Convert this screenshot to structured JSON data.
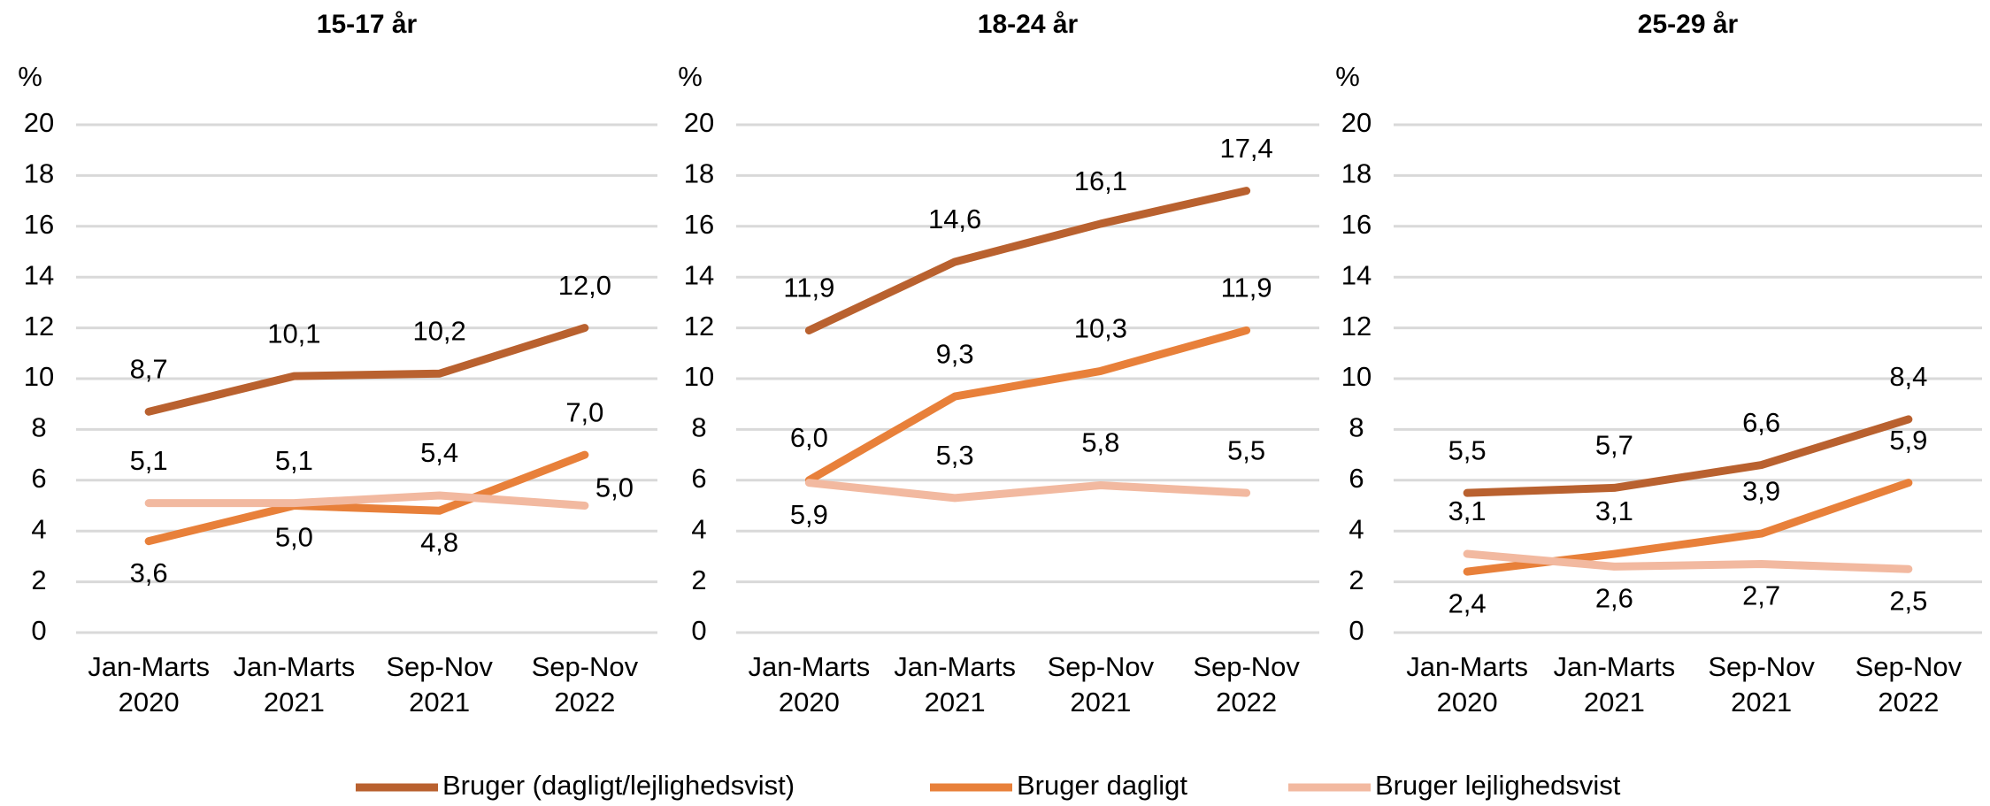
{
  "chart_data": [
    {
      "type": "line",
      "title": "15-17 år",
      "y_label": "%",
      "categories": [
        "Jan-Marts 2020",
        "Jan-Marts 2021",
        "Sep-Nov 2021",
        "Sep-Nov 2022"
      ],
      "ylim": [
        0,
        20
      ],
      "yticks": [
        0,
        2,
        4,
        6,
        8,
        10,
        12,
        14,
        16,
        18,
        20
      ],
      "grid": true,
      "series": [
        {
          "name": "Bruger (dagligt/lejlighedsvist)",
          "color": "#b9612f",
          "values": [
            8.7,
            10.1,
            10.2,
            12.0
          ],
          "value_labels": [
            "8,7",
            "10,1",
            "10,2",
            "12,0"
          ]
        },
        {
          "name": "Bruger dagligt",
          "color": "#e8803a",
          "values": [
            3.6,
            5.0,
            4.8,
            7.0
          ],
          "value_labels": [
            "3,6",
            "5,0",
            "4,8",
            "7,0"
          ]
        },
        {
          "name": "Bruger lejlighedsvist",
          "color": "#f2b9a0",
          "values": [
            5.1,
            5.1,
            5.4,
            5.0
          ],
          "value_labels": [
            "5,1",
            "5,1",
            "5,4",
            "5,0"
          ]
        }
      ]
    },
    {
      "type": "line",
      "title": "18-24 år",
      "y_label": "%",
      "categories": [
        "Jan-Marts 2020",
        "Jan-Marts 2021",
        "Sep-Nov 2021",
        "Sep-Nov 2022"
      ],
      "ylim": [
        0,
        20
      ],
      "yticks": [
        0,
        2,
        4,
        6,
        8,
        10,
        12,
        14,
        16,
        18,
        20
      ],
      "grid": true,
      "series": [
        {
          "name": "Bruger (dagligt/lejlighedsvist)",
          "color": "#b9612f",
          "values": [
            11.9,
            14.6,
            16.1,
            17.4
          ],
          "value_labels": [
            "11,9",
            "14,6",
            "16,1",
            "17,4"
          ]
        },
        {
          "name": "Bruger dagligt",
          "color": "#e8803a",
          "values": [
            6.0,
            9.3,
            10.3,
            11.9
          ],
          "value_labels": [
            "6,0",
            "9,3",
            "10,3",
            "11,9"
          ]
        },
        {
          "name": "Bruger lejlighedsvist",
          "color": "#f2b9a0",
          "values": [
            5.9,
            5.3,
            5.8,
            5.5
          ],
          "value_labels": [
            "5,9",
            "5,3",
            "5,8",
            "5,5"
          ]
        }
      ]
    },
    {
      "type": "line",
      "title": "25-29 år",
      "y_label": "%",
      "categories": [
        "Jan-Marts 2020",
        "Jan-Marts 2021",
        "Sep-Nov 2021",
        "Sep-Nov 2022"
      ],
      "ylim": [
        0,
        20
      ],
      "yticks": [
        0,
        2,
        4,
        6,
        8,
        10,
        12,
        14,
        16,
        18,
        20
      ],
      "grid": true,
      "series": [
        {
          "name": "Bruger (dagligt/lejlighedsvist)",
          "color": "#b9612f",
          "values": [
            5.5,
            5.7,
            6.6,
            8.4
          ],
          "value_labels": [
            "5,5",
            "5,7",
            "6,6",
            "8,4"
          ]
        },
        {
          "name": "Bruger dagligt",
          "color": "#e8803a",
          "values": [
            2.4,
            3.1,
            3.9,
            5.9
          ],
          "value_labels": [
            "2,4",
            "3,1",
            "3,9",
            "5,9"
          ]
        },
        {
          "name": "Bruger lejlighedsvist",
          "color": "#f2b9a0",
          "values": [
            3.1,
            2.6,
            2.7,
            2.5
          ],
          "value_labels": [
            "3,1",
            "2,6",
            "2,7",
            "2,5"
          ]
        }
      ]
    }
  ]
}
